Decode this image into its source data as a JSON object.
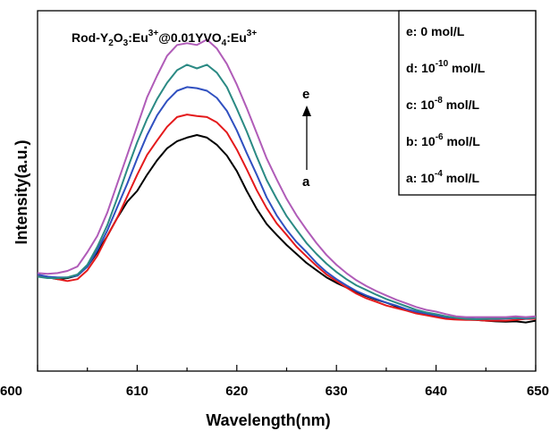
{
  "chart_data": {
    "type": "line",
    "title": "",
    "annotation": {
      "sample_parts": [
        "Rod-Y",
        "2",
        "O",
        "3",
        ":Eu",
        "3+",
        "@0.01YVO",
        "4",
        ":Eu",
        "3+"
      ],
      "arrow_top_label": "e",
      "arrow_bottom_label": "a"
    },
    "xlabel": "Wavelength(nm)",
    "ylabel": "Intensity(a.u.)",
    "xlim": [
      600,
      650
    ],
    "ylim": [
      0,
      1
    ],
    "x_ticks": [
      "600",
      "610",
      "620",
      "630",
      "640",
      "650"
    ],
    "y_ticks_shown": false,
    "legend_position": "top-right",
    "legend": [
      {
        "prefix": "e: ",
        "base": "0",
        "exp": "",
        "unit": " mol/L"
      },
      {
        "prefix": "d: ",
        "base": "10",
        "exp": "-10",
        "unit": " mol/L"
      },
      {
        "prefix": "c: ",
        "base": "10",
        "exp": "-8",
        "unit": " mol/L"
      },
      {
        "prefix": "b: ",
        "base": "10",
        "exp": "-6",
        "unit": " mol/L"
      },
      {
        "prefix": "a: ",
        "base": "10",
        "exp": "-4",
        "unit": " mol/L"
      }
    ],
    "x": [
      600,
      601,
      602,
      603,
      604,
      605,
      606,
      607,
      608,
      609,
      610,
      611,
      612,
      613,
      614,
      615,
      616,
      617,
      618,
      619,
      620,
      621,
      622,
      623,
      624,
      625,
      626,
      627,
      628,
      629,
      630,
      631,
      632,
      633,
      634,
      635,
      636,
      637,
      638,
      639,
      640,
      641,
      642,
      643,
      644,
      645,
      646,
      647,
      648,
      649,
      650
    ],
    "series": [
      {
        "name": "a",
        "color": "#000000",
        "values": [
          0.268,
          0.26,
          0.255,
          0.258,
          0.265,
          0.29,
          0.33,
          0.375,
          0.425,
          0.47,
          0.5,
          0.545,
          0.585,
          0.618,
          0.638,
          0.648,
          0.655,
          0.648,
          0.628,
          0.598,
          0.555,
          0.5,
          0.45,
          0.408,
          0.378,
          0.35,
          0.325,
          0.3,
          0.28,
          0.26,
          0.245,
          0.232,
          0.22,
          0.208,
          0.198,
          0.19,
          0.18,
          0.17,
          0.162,
          0.158,
          0.152,
          0.148,
          0.145,
          0.143,
          0.142,
          0.14,
          0.138,
          0.137,
          0.138,
          0.135,
          0.14
        ]
      },
      {
        "name": "b",
        "color": "#e41a1c",
        "values": [
          0.265,
          0.262,
          0.255,
          0.25,
          0.255,
          0.28,
          0.32,
          0.375,
          0.425,
          0.485,
          0.545,
          0.6,
          0.64,
          0.678,
          0.705,
          0.712,
          0.708,
          0.705,
          0.69,
          0.662,
          0.615,
          0.56,
          0.502,
          0.452,
          0.41,
          0.378,
          0.345,
          0.318,
          0.292,
          0.268,
          0.25,
          0.232,
          0.215,
          0.202,
          0.192,
          0.182,
          0.175,
          0.168,
          0.16,
          0.155,
          0.15,
          0.145,
          0.143,
          0.142,
          0.142,
          0.14,
          0.14,
          0.14,
          0.142,
          0.145,
          0.145
        ]
      },
      {
        "name": "c",
        "color": "#3050c0",
        "values": [
          0.268,
          0.262,
          0.26,
          0.26,
          0.265,
          0.29,
          0.335,
          0.39,
          0.455,
          0.52,
          0.59,
          0.655,
          0.71,
          0.75,
          0.778,
          0.788,
          0.785,
          0.778,
          0.758,
          0.722,
          0.668,
          0.605,
          0.545,
          0.482,
          0.432,
          0.392,
          0.358,
          0.33,
          0.3,
          0.275,
          0.255,
          0.238,
          0.222,
          0.21,
          0.2,
          0.19,
          0.182,
          0.172,
          0.165,
          0.16,
          0.155,
          0.15,
          0.148,
          0.146,
          0.145,
          0.145,
          0.145,
          0.146,
          0.147,
          0.146,
          0.148
        ]
      },
      {
        "name": "d",
        "color": "#2b8a84",
        "values": [
          0.262,
          0.258,
          0.258,
          0.26,
          0.268,
          0.295,
          0.345,
          0.405,
          0.48,
          0.56,
          0.635,
          0.7,
          0.755,
          0.8,
          0.835,
          0.85,
          0.84,
          0.85,
          0.828,
          0.788,
          0.728,
          0.665,
          0.595,
          0.53,
          0.478,
          0.43,
          0.392,
          0.355,
          0.325,
          0.298,
          0.275,
          0.255,
          0.238,
          0.225,
          0.212,
          0.2,
          0.19,
          0.18,
          0.17,
          0.163,
          0.158,
          0.152,
          0.148,
          0.145,
          0.144,
          0.145,
          0.146,
          0.147,
          0.148,
          0.147,
          0.148
        ]
      },
      {
        "name": "e",
        "color": "#b05cb8",
        "values": [
          0.272,
          0.27,
          0.272,
          0.278,
          0.29,
          0.33,
          0.375,
          0.44,
          0.52,
          0.6,
          0.68,
          0.76,
          0.82,
          0.875,
          0.905,
          0.91,
          0.905,
          0.92,
          0.895,
          0.852,
          0.795,
          0.73,
          0.66,
          0.59,
          0.532,
          0.478,
          0.432,
          0.392,
          0.355,
          0.322,
          0.295,
          0.272,
          0.252,
          0.236,
          0.222,
          0.21,
          0.198,
          0.188,
          0.178,
          0.17,
          0.165,
          0.158,
          0.152,
          0.15,
          0.15,
          0.15,
          0.15,
          0.15,
          0.152,
          0.15,
          0.152
        ]
      }
    ]
  }
}
